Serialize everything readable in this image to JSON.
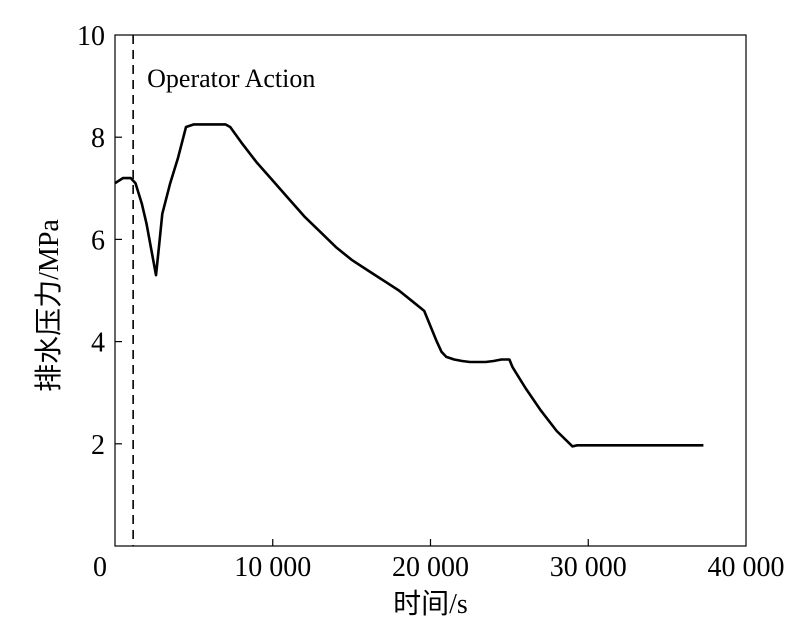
{
  "chart_data": {
    "type": "line",
    "title": "",
    "xlabel": "时间/s",
    "ylabel": "排水压力/MPa",
    "xlim": [
      0,
      40000
    ],
    "ylim": [
      0,
      10
    ],
    "xticks": [
      0,
      10000,
      20000,
      30000,
      40000
    ],
    "xtick_labels": [
      "0",
      "10 000",
      "20 000",
      "30 000",
      "40 000"
    ],
    "yticks": [
      2,
      4,
      6,
      8,
      10
    ],
    "ytick_labels": [
      "2",
      "4",
      "6",
      "8",
      "10"
    ],
    "grid": false,
    "legend": "none",
    "line_color": "#000000",
    "annotation": {
      "label": "Operator Action",
      "x": 1150,
      "style": "dashed vertical line"
    },
    "series": [
      {
        "x": [
          0,
          500,
          1000,
          1300,
          1700,
          2000,
          2300,
          2600,
          2800,
          3000,
          3500,
          4000,
          4500,
          5000,
          6000,
          7000,
          7300,
          8000,
          9000,
          10000,
          11000,
          12000,
          13000,
          14000,
          15000,
          16000,
          17000,
          18000,
          18800,
          19600,
          20000,
          20400,
          20700,
          21000,
          21500,
          22000,
          22500,
          23000,
          23500,
          24000,
          24500,
          25000,
          25200,
          25300,
          26000,
          27000,
          28000,
          29000,
          29300,
          30000,
          32000,
          34000,
          36000,
          37300
        ],
        "y": [
          7.1,
          7.2,
          7.2,
          7.1,
          6.7,
          6.3,
          5.8,
          5.3,
          5.9,
          6.5,
          7.1,
          7.6,
          8.2,
          8.25,
          8.25,
          8.25,
          8.2,
          7.9,
          7.5,
          7.15,
          6.8,
          6.45,
          6.15,
          5.85,
          5.6,
          5.4,
          5.2,
          5.0,
          4.8,
          4.6,
          4.3,
          4.0,
          3.8,
          3.7,
          3.65,
          3.62,
          3.6,
          3.6,
          3.6,
          3.62,
          3.65,
          3.65,
          3.5,
          3.45,
          3.1,
          2.65,
          2.25,
          1.95,
          1.97,
          1.97,
          1.97,
          1.97,
          1.97,
          1.97
        ]
      }
    ]
  }
}
